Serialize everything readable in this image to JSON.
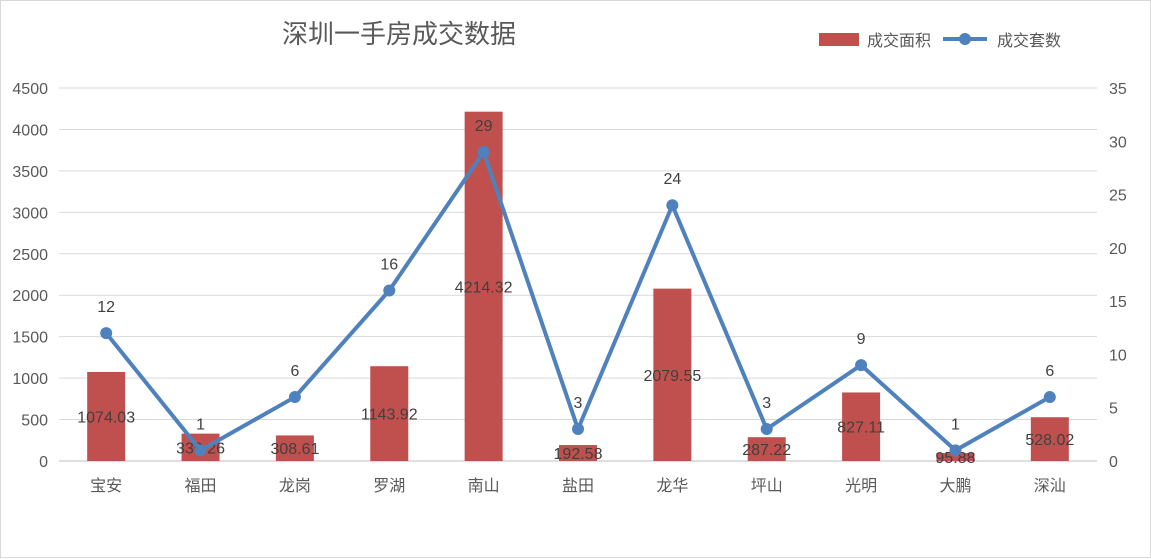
{
  "chart_data": {
    "type": "bar+line",
    "title": "深圳一手房成交数据",
    "categories": [
      "宝安",
      "福田",
      "龙岗",
      "罗湖",
      "南山",
      "盐田",
      "龙华",
      "坪山",
      "光明",
      "大鹏",
      "深汕"
    ],
    "series": [
      {
        "name": "成交面积",
        "type": "bar",
        "axis": "left",
        "color": "#C0504D",
        "values": [
          1074.03,
          330.26,
          308.61,
          1143.92,
          4214.32,
          192.58,
          2079.55,
          287.22,
          827.11,
          95.88,
          528.02
        ],
        "labels": [
          "1074.03",
          "330.26",
          "308.61",
          "1143.92",
          "4214.32",
          "192.58",
          "2079.55",
          "287.22",
          "827.11",
          "95.88",
          "528.02"
        ]
      },
      {
        "name": "成交套数",
        "type": "line",
        "axis": "right",
        "color": "#4F81BD",
        "values": [
          12,
          1,
          6,
          16,
          29,
          3,
          24,
          3,
          9,
          1,
          6
        ],
        "labels": [
          "12",
          "1",
          "6",
          "16",
          "29",
          "3",
          "24",
          "3",
          "9",
          "1",
          "6"
        ]
      }
    ],
    "y_left": {
      "min": 0,
      "max": 4500,
      "ticks": [
        "0",
        "500",
        "1000",
        "1500",
        "2000",
        "2500",
        "3000",
        "3500",
        "4000",
        "4500"
      ]
    },
    "y_right": {
      "min": 0,
      "max": 35,
      "ticks": [
        "0",
        "5",
        "10",
        "15",
        "20",
        "25",
        "30",
        "35"
      ]
    },
    "grid": true,
    "legend_position": "top-right"
  }
}
